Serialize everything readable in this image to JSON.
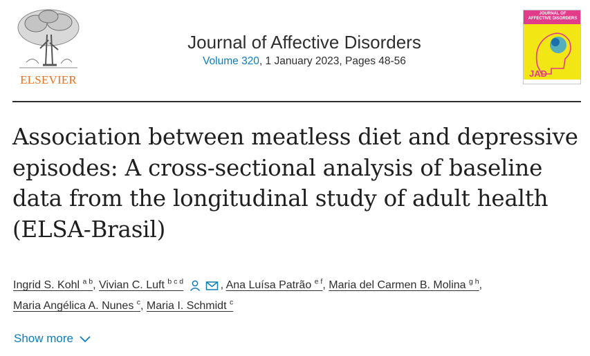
{
  "publisher": {
    "name": "ELSEVIER",
    "brand_color": "#e9711c"
  },
  "journal": {
    "title": "Journal of Affective Disorders",
    "volume_link": "Volume 320",
    "issue_info": ", 1 January 2023, Pages 48-56",
    "cover": {
      "line1": "JOURNAL OF",
      "line2": "AFFECTIVE DISORDERS",
      "monogram": "JAD",
      "background": "#f2e615"
    }
  },
  "article": {
    "title": "Association between meatless diet and depressive episodes: A cross-sectional analysis of baseline data from the longitudinal study of adult health (ELSA-Brasil)"
  },
  "authors": [
    {
      "name": "Ingrid S. Kohl",
      "affil": "a b"
    },
    {
      "name": "Vivian C. Luft",
      "affil": "b c d"
    },
    {
      "name": "Ana Luísa Patrão",
      "affil": "e f"
    },
    {
      "name": "Maria del Carmen B. Molina",
      "affil": "g h"
    },
    {
      "name": "Maria Angélica A. Nunes",
      "affil": "c"
    },
    {
      "name": "Maria I. Schmidt",
      "affil": "c"
    }
  ],
  "icons": {
    "corresponding_author": "person-icon",
    "email": "envelope-icon",
    "expand": "chevron-down-icon"
  },
  "show_more": {
    "label": "Show more"
  },
  "colors": {
    "link": "#0c7dbb",
    "text": "#2e2e2e"
  }
}
